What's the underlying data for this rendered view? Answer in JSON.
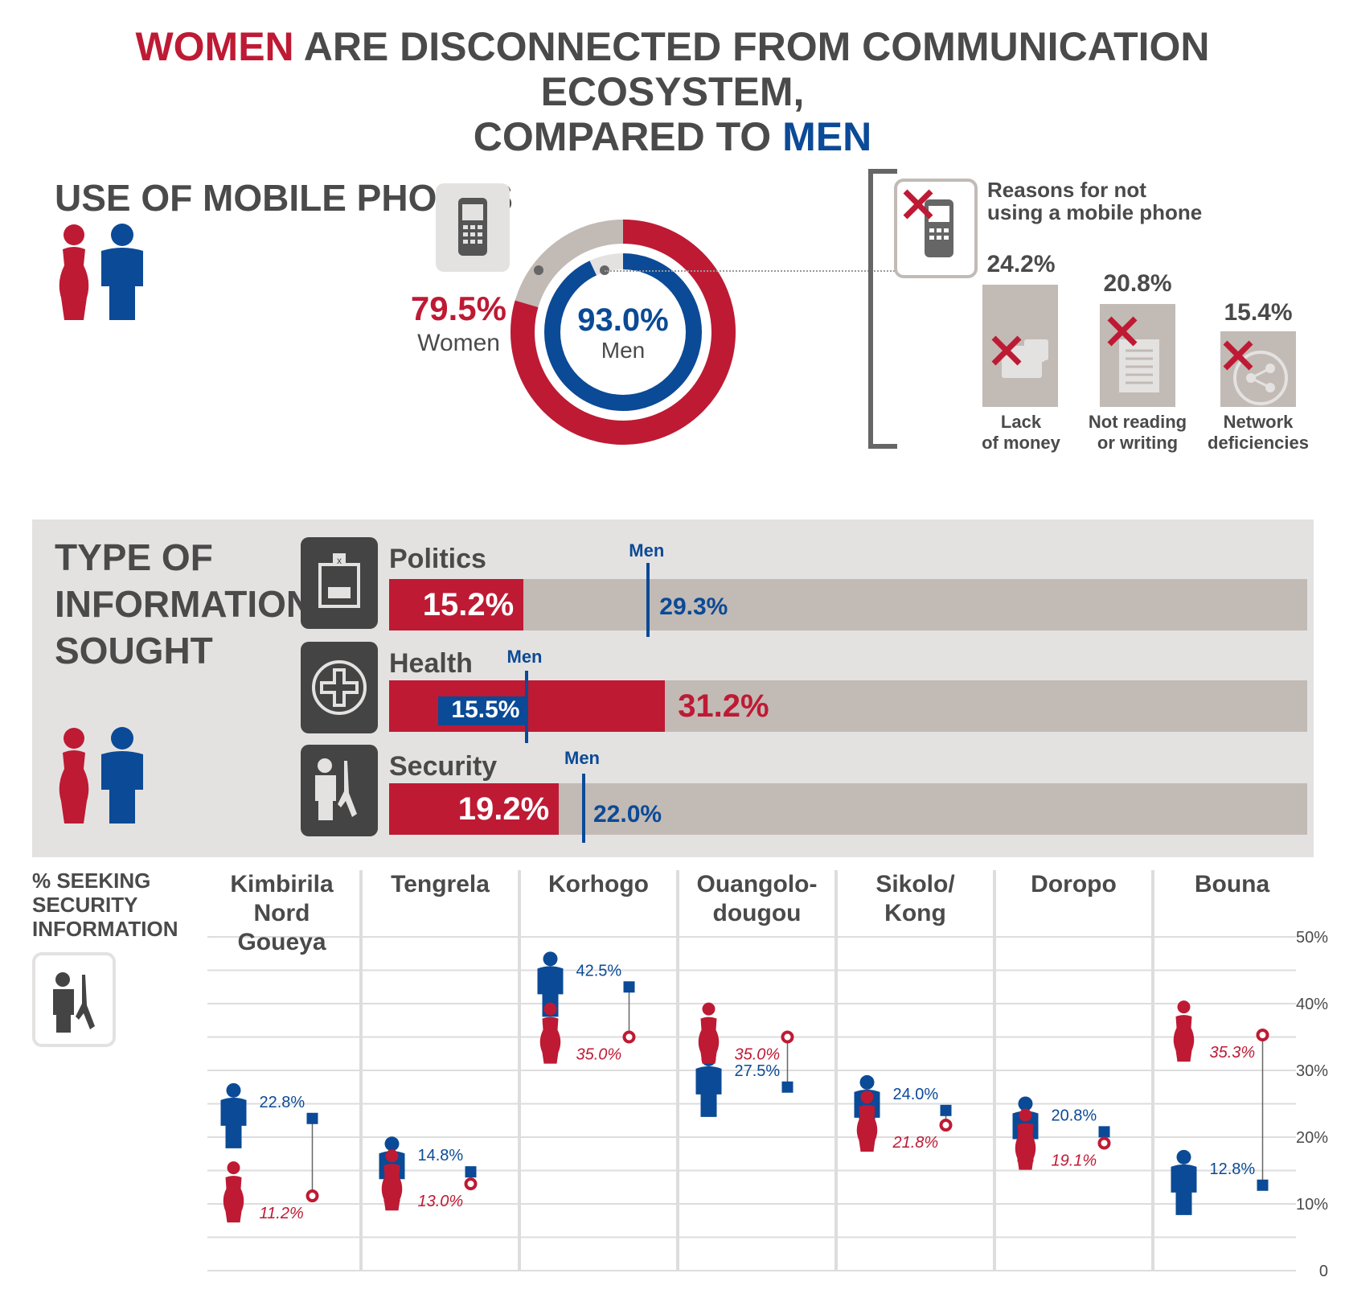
{
  "title": {
    "line1_highlight": "WOMEN",
    "line1_rest": " ARE DISCONNECTED FROM COMMUNICATION ECOSYSTEM,",
    "line2_rest": "COMPARED TO ",
    "line2_highlight": "MEN"
  },
  "colors": {
    "women": "#be1a34",
    "men": "#0b4a96",
    "grey": "#c2bab5",
    "panel": "#e4e2e1",
    "text": "#4a4a4a"
  },
  "mobile": {
    "heading": "USE OF MOBILE PHONES",
    "women_value": "79.5%",
    "women_label": "Women",
    "men_value": "93.0%",
    "men_label": "Men",
    "icon": "mobile-phone-icon"
  },
  "reasons": {
    "heading_line1": "Reasons for not",
    "heading_line2": "using a mobile phone",
    "items": [
      {
        "value": "24.2%",
        "label_line1": "Lack",
        "label_line2": "of money",
        "icon": "money-icon"
      },
      {
        "value": "20.8%",
        "label_line1": "Not reading",
        "label_line2": "or writing",
        "icon": "document-icon"
      },
      {
        "value": "15.4%",
        "label_line1": "Network",
        "label_line2": "deficiencies",
        "icon": "share-network-icon"
      }
    ]
  },
  "info": {
    "heading_line1": "TYPE OF",
    "heading_line2": "INFORMATION",
    "heading_line3": "SOUGHT",
    "men_tag": "Men",
    "rows": [
      {
        "label": "Politics",
        "women": "15.2%",
        "men": "29.3%",
        "icon": "ballot-box-icon"
      },
      {
        "label": "Health",
        "women": "31.2%",
        "men": "15.5%",
        "icon": "health-cross-icon"
      },
      {
        "label": "Security",
        "women": "19.2%",
        "men": "22.0%",
        "icon": "soldier-icon"
      }
    ]
  },
  "security": {
    "heading_line1": "% SEEKING",
    "heading_line2": "SECURITY",
    "heading_line3": "INFORMATION",
    "icon": "soldier-icon",
    "regions": [
      {
        "line1": "Kimbirila Nord",
        "line2": "Goueya",
        "men": "22.8%",
        "women": "11.2%"
      },
      {
        "line1": "Tengrela",
        "line2": "",
        "men": "14.8%",
        "women": "13.0%"
      },
      {
        "line1": "Korhogo",
        "line2": "",
        "men": "42.5%",
        "women": "35.0%"
      },
      {
        "line1": "Ouangolo-",
        "line2": "dougou",
        "men": "27.5%",
        "women": "35.0%"
      },
      {
        "line1": "Sikolo/",
        "line2": "Kong",
        "men": "24.0%",
        "women": "21.8%"
      },
      {
        "line1": "Doropo",
        "line2": "",
        "men": "20.8%",
        "women": "19.1%"
      },
      {
        "line1": "Bouna",
        "line2": "",
        "men": "12.8%",
        "women": "35.3%"
      }
    ],
    "ticks": [
      "0",
      "10%",
      "20%",
      "30%",
      "40%",
      "50%"
    ]
  },
  "chart_data": [
    {
      "type": "pie",
      "categories": [
        "Women",
        "Men"
      ],
      "values": [
        79.5,
        93.0
      ]
    },
    {
      "type": "bar",
      "categories": [
        "Lack of money",
        "Not reading or writing",
        "Network deficiencies"
      ],
      "values": [
        24.2,
        20.8,
        15.4
      ],
      "title": "Reasons for not using a mobile phone"
    },
    {
      "type": "bar",
      "categories": [
        "Politics",
        "Health",
        "Security"
      ],
      "series": [
        {
          "name": "Women",
          "values": [
            15.2,
            31.2,
            19.2
          ]
        },
        {
          "name": "Men",
          "values": [
            29.3,
            15.5,
            22.0
          ]
        }
      ]
    },
    {
      "type": "scatter",
      "categories": [
        "Kimbirila Nord Goueya",
        "Tengrela",
        "Korhogo",
        "Ouangolo-dougou",
        "Sikolo/Kong",
        "Doropo",
        "Bouna"
      ],
      "series": [
        {
          "name": "Men",
          "values": [
            22.8,
            14.8,
            42.5,
            27.5,
            24.0,
            20.8,
            12.8
          ]
        },
        {
          "name": "Women",
          "values": [
            11.2,
            13.0,
            35.0,
            35.0,
            21.8,
            19.1,
            35.3
          ]
        }
      ],
      "title": "% SEEKING SECURITY INFORMATION",
      "ylim": [
        0,
        50
      ]
    }
  ]
}
